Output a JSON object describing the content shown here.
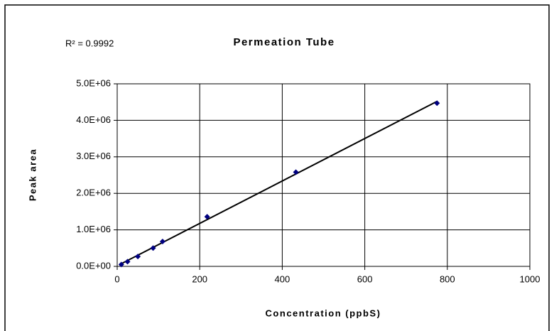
{
  "chart_data": {
    "type": "scatter",
    "title": "Permeation Tube",
    "annotation": "R² = 0.9992",
    "xlabel": "Concentration (ppbS)",
    "ylabel": "Peak area",
    "x": [
      10,
      25,
      50,
      87,
      110,
      218,
      433,
      775
    ],
    "values": [
      50000,
      130000,
      270000,
      500000,
      680000,
      1360000,
      2580000,
      4470000
    ],
    "color": "#000080",
    "trendline": true,
    "trendline_color": "#000000",
    "xlim": [
      0,
      1000
    ],
    "xticks": [
      0,
      200,
      400,
      600,
      800,
      1000
    ],
    "ylim": [
      0,
      5000000
    ],
    "yticks": [
      {
        "value": 0,
        "label": "0.0E+00"
      },
      {
        "value": 1000000,
        "label": "1.0E+06"
      },
      {
        "value": 2000000,
        "label": "2.0E+06"
      },
      {
        "value": 3000000,
        "label": "3.0E+06"
      },
      {
        "value": 4000000,
        "label": "4.0E+06"
      },
      {
        "value": 5000000,
        "label": "5.0E+06"
      }
    ],
    "grid": true
  }
}
